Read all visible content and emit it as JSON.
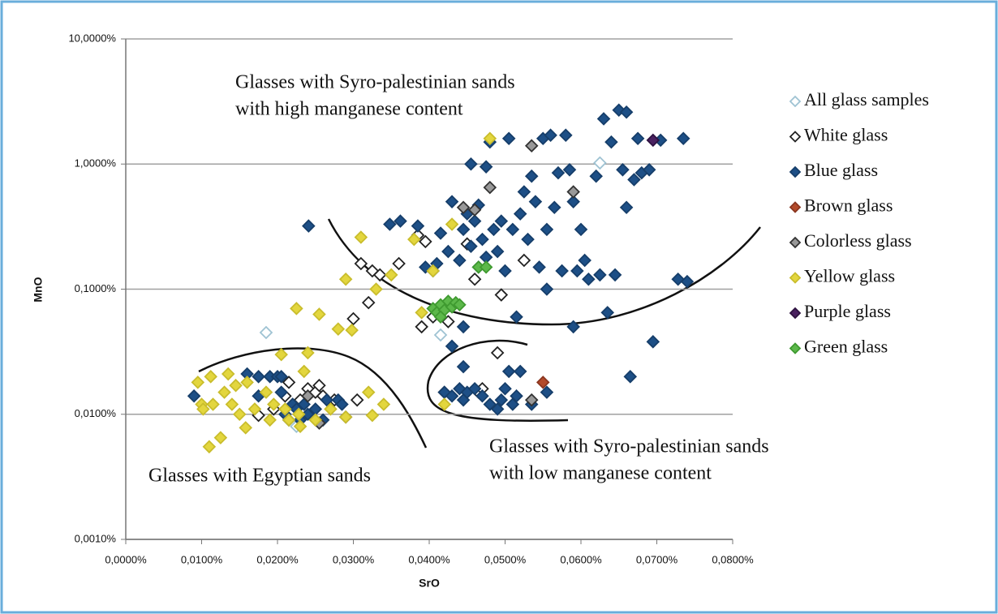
{
  "chart_data": {
    "type": "scatter",
    "y_label": "MnO",
    "x_label": "SrO",
    "log_y": true,
    "grid": true,
    "legend": "right",
    "xlim": [
      0,
      0.08
    ],
    "xticks": [
      {
        "value": 0,
        "label": "0,0000%"
      },
      {
        "value": 0.01,
        "label": "0,0100%"
      },
      {
        "value": 0.02,
        "label": "0,0200%"
      },
      {
        "value": 0.03,
        "label": "0,0300%"
      },
      {
        "value": 0.04,
        "label": "0,0400%"
      },
      {
        "value": 0.05,
        "label": "0,0500%"
      },
      {
        "value": 0.06,
        "label": "0,0600%"
      },
      {
        "value": 0.07,
        "label": "0,0700%"
      },
      {
        "value": 0.08,
        "label": "0,0800%"
      }
    ],
    "ylim": [
      0.001,
      10
    ],
    "yticks": [
      {
        "value": 0.001,
        "label": "0,0010%"
      },
      {
        "value": 0.01,
        "label": "0,0100%"
      },
      {
        "value": 0.1,
        "label": "0,1000%"
      },
      {
        "value": 1,
        "label": "1,0000%"
      },
      {
        "value": 10,
        "label": "10,0000%"
      }
    ],
    "annotations": [
      {
        "lines": [
          "Glasses with Syro-palestinian sands",
          "with high manganese content"
        ]
      },
      {
        "lines": [
          "Glasses with Egyptian sands"
        ]
      },
      {
        "lines": [
          "Glasses with Syro-palestinian sands",
          "with low manganese content"
        ]
      }
    ],
    "series": [
      {
        "name": "All glass samples",
        "color": "#ffffff",
        "edge": "#9fc3d3",
        "x": [
          0.0185,
          0.0415,
          0.0625,
          0.0225
        ],
        "values": [
          0.045,
          0.043,
          1.02,
          0.008
        ]
      },
      {
        "name": "White glass",
        "color": "#ffffff",
        "edge": "#222222",
        "x": [
          0.0175,
          0.0195,
          0.021,
          0.0215,
          0.022,
          0.023,
          0.024,
          0.025,
          0.0255,
          0.026,
          0.0275,
          0.029,
          0.0305,
          0.03,
          0.031,
          0.032,
          0.0325,
          0.0335,
          0.036,
          0.0385,
          0.039,
          0.0395,
          0.0405,
          0.0425,
          0.045,
          0.046,
          0.0495,
          0.042,
          0.0465,
          0.047,
          0.049,
          0.0525
        ],
        "values": [
          0.0098,
          0.011,
          0.014,
          0.018,
          0.012,
          0.013,
          0.016,
          0.015,
          0.017,
          0.014,
          0.013,
          0.0095,
          0.013,
          0.058,
          0.16,
          0.078,
          0.14,
          0.13,
          0.16,
          0.27,
          0.05,
          0.24,
          0.06,
          0.055,
          0.23,
          0.12,
          0.09,
          0.015,
          0.015,
          0.016,
          0.031,
          0.17
        ]
      },
      {
        "name": "Blue glass",
        "color": "#1d4f86",
        "edge": "#163e6a",
        "x": [
          0.0241,
          0.0385,
          0.0395,
          0.041,
          0.0415,
          0.043,
          0.044,
          0.0445,
          0.045,
          0.0455,
          0.046,
          0.0465,
          0.047,
          0.0475,
          0.048,
          0.0485,
          0.049,
          0.0495,
          0.05,
          0.0505,
          0.051,
          0.0515,
          0.052,
          0.0525,
          0.053,
          0.0535,
          0.054,
          0.0545,
          0.055,
          0.0555,
          0.056,
          0.0565,
          0.057,
          0.0575,
          0.058,
          0.0585,
          0.059,
          0.0595,
          0.06,
          0.0605,
          0.061,
          0.062,
          0.0625,
          0.063,
          0.0635,
          0.064,
          0.0645,
          0.065,
          0.0655,
          0.066,
          0.066,
          0.067,
          0.0675,
          0.068,
          0.069,
          0.0695,
          0.0705,
          0.0728,
          0.0735,
          0.074,
          0.043,
          0.0445,
          0.0465,
          0.0455,
          0.0555,
          0.059,
          0.0475,
          0.0425,
          0.0405,
          0.0348,
          0.0362,
          0.042,
          0.043,
          0.044,
          0.0445,
          0.045,
          0.046,
          0.047,
          0.048,
          0.049,
          0.0495,
          0.05,
          0.0505,
          0.051,
          0.0515,
          0.052,
          0.0535,
          0.0555,
          0.0445,
          0.0665,
          0.009,
          0.016,
          0.0175,
          0.019,
          0.02,
          0.0205,
          0.021,
          0.0215,
          0.022,
          0.0225,
          0.023,
          0.0235,
          0.024,
          0.025,
          0.026,
          0.0265,
          0.028,
          0.0285,
          0.0175,
          0.0205
        ],
        "values": [
          0.32,
          0.32,
          0.15,
          0.16,
          0.28,
          0.5,
          0.17,
          0.3,
          0.4,
          0.22,
          0.35,
          0.15,
          0.25,
          0.95,
          1.5,
          0.3,
          0.2,
          0.35,
          0.14,
          1.6,
          0.3,
          0.06,
          0.4,
          0.6,
          0.25,
          0.8,
          0.5,
          0.15,
          1.6,
          0.3,
          1.7,
          0.45,
          0.85,
          0.14,
          1.7,
          0.9,
          0.5,
          0.14,
          0.3,
          0.17,
          0.12,
          0.8,
          0.13,
          2.3,
          0.065,
          1.5,
          0.13,
          2.7,
          0.9,
          0.45,
          2.6,
          0.75,
          1.6,
          0.85,
          0.9,
          0.038,
          1.55,
          0.12,
          1.6,
          0.115,
          0.035,
          0.05,
          0.47,
          1.0,
          0.1,
          0.05,
          0.18,
          0.2,
          0.14,
          0.33,
          0.35,
          0.015,
          0.014,
          0.016,
          0.013,
          0.015,
          0.016,
          0.014,
          0.012,
          0.011,
          0.013,
          0.016,
          0.022,
          0.012,
          0.014,
          0.022,
          0.012,
          0.015,
          0.024,
          0.02,
          0.014,
          0.021,
          0.02,
          0.02,
          0.02,
          0.015,
          0.01,
          0.009,
          0.012,
          0.011,
          0.009,
          0.012,
          0.01,
          0.011,
          0.009,
          0.013,
          0.013,
          0.012,
          0.014,
          0.02
        ]
      },
      {
        "name": "Brown glass",
        "color": "#b34a2a",
        "edge": "#8a3620",
        "x": [
          0.055
        ],
        "values": [
          0.018
        ]
      },
      {
        "name": "Colorless glass",
        "color": "#999999",
        "edge": "#333333",
        "x": [
          0.0445,
          0.046,
          0.048,
          0.0535,
          0.059,
          0.0535,
          0.0255,
          0.024
        ],
        "values": [
          0.45,
          0.43,
          0.65,
          1.4,
          0.6,
          0.013,
          0.0085,
          0.014
        ]
      },
      {
        "name": "Yellow glass",
        "color": "#e3d63e",
        "edge": "#c9bd2c",
        "x": [
          0.0095,
          0.01,
          0.0102,
          0.011,
          0.0112,
          0.0115,
          0.0125,
          0.013,
          0.0135,
          0.014,
          0.0145,
          0.015,
          0.0158,
          0.016,
          0.017,
          0.0185,
          0.019,
          0.0195,
          0.0205,
          0.021,
          0.0215,
          0.0225,
          0.0228,
          0.023,
          0.0235,
          0.024,
          0.025,
          0.0255,
          0.027,
          0.028,
          0.029,
          0.0298,
          0.031,
          0.032,
          0.033,
          0.0325,
          0.034,
          0.035,
          0.038,
          0.039,
          0.0405,
          0.042,
          0.043,
          0.048,
          0.029
        ],
        "values": [
          0.018,
          0.012,
          0.011,
          0.0055,
          0.02,
          0.012,
          0.0065,
          0.015,
          0.021,
          0.012,
          0.017,
          0.01,
          0.0078,
          0.018,
          0.011,
          0.015,
          0.009,
          0.012,
          0.03,
          0.011,
          0.009,
          0.07,
          0.01,
          0.008,
          0.022,
          0.031,
          0.009,
          0.063,
          0.011,
          0.048,
          0.12,
          0.047,
          0.26,
          0.015,
          0.1,
          0.0098,
          0.012,
          0.13,
          0.25,
          0.065,
          0.14,
          0.012,
          0.33,
          1.6,
          0.0095
        ]
      },
      {
        "name": "Purple glass",
        "color": "#4a2160",
        "edge": "#2e1240",
        "x": [
          0.0695
        ],
        "values": [
          1.55
        ]
      },
      {
        "name": "Green glass",
        "color": "#5cb84a",
        "edge": "#3f9a30",
        "x": [
          0.0405,
          0.041,
          0.0415,
          0.042,
          0.0425,
          0.043,
          0.0435,
          0.044,
          0.0465,
          0.0475,
          0.0415
        ],
        "values": [
          0.07,
          0.065,
          0.075,
          0.068,
          0.08,
          0.072,
          0.078,
          0.075,
          0.15,
          0.15,
          0.06
        ]
      }
    ]
  }
}
